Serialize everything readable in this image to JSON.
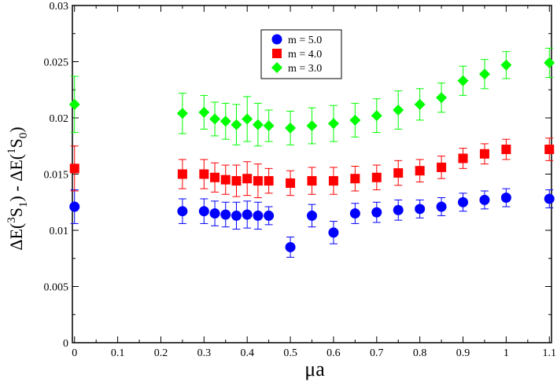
{
  "chart_data": {
    "type": "scatter",
    "title": "",
    "xlabel": "μa",
    "ylabel": {
      "part1": "ΔE(",
      "sup1": "3",
      "part2": "S",
      "sub1": "1",
      "part3": ") - ΔE(",
      "sup2": "1",
      "part4": "S",
      "sub2": "0",
      "part5": ")"
    },
    "xlim": [
      -0.005,
      1.105
    ],
    "ylim": [
      0,
      0.03
    ],
    "xticks": [
      0,
      0.1,
      0.2,
      0.3,
      0.4,
      0.5,
      0.6,
      0.7,
      0.8,
      0.9,
      1,
      1.1
    ],
    "xtick_labels": [
      "0",
      "0.1",
      "0.2",
      "0.3",
      "0.4",
      "0.5",
      "0.6",
      "0.7",
      "0.8",
      "0.9",
      "1",
      "1.1"
    ],
    "yticks": [
      0,
      0.005,
      0.01,
      0.015,
      0.02,
      0.025,
      0.03
    ],
    "ytick_labels": [
      "0",
      "0.005",
      "0.01",
      "0.015",
      "0.02",
      "0.025",
      "0.03"
    ],
    "legend_position": "top-center",
    "series": [
      {
        "name": "m = 5.0",
        "color": "#0000ff",
        "marker": "circle",
        "x": [
          0,
          0.25,
          0.3,
          0.325,
          0.35,
          0.375,
          0.4,
          0.425,
          0.45,
          0.5,
          0.55,
          0.6,
          0.65,
          0.7,
          0.75,
          0.8,
          0.85,
          0.9,
          0.95,
          1.0,
          1.1
        ],
        "y": [
          0.0121,
          0.0117,
          0.0117,
          0.0115,
          0.0114,
          0.0113,
          0.0114,
          0.0113,
          0.0113,
          0.0085,
          0.0113,
          0.0098,
          0.0115,
          0.0116,
          0.0118,
          0.0119,
          0.0121,
          0.0125,
          0.0127,
          0.0129,
          0.0128
        ],
        "err": [
          0.0015,
          0.0011,
          0.0011,
          0.0011,
          0.0011,
          0.0012,
          0.0012,
          0.0012,
          0.0008,
          0.0009,
          0.001,
          0.001,
          0.0009,
          0.0009,
          0.0009,
          0.0008,
          0.0008,
          0.0008,
          0.0008,
          0.0008,
          0.0008
        ]
      },
      {
        "name": "m = 4.0",
        "color": "#ff0000",
        "marker": "square",
        "x": [
          0,
          0.25,
          0.3,
          0.325,
          0.35,
          0.375,
          0.4,
          0.425,
          0.45,
          0.5,
          0.55,
          0.6,
          0.65,
          0.7,
          0.75,
          0.8,
          0.85,
          0.9,
          0.95,
          1.0,
          1.1
        ],
        "y": [
          0.0155,
          0.015,
          0.015,
          0.0147,
          0.0145,
          0.0144,
          0.0146,
          0.0144,
          0.0144,
          0.0142,
          0.0144,
          0.0144,
          0.0146,
          0.0147,
          0.0151,
          0.0153,
          0.0156,
          0.0164,
          0.0168,
          0.0172,
          0.0172
        ],
        "err": [
          0.002,
          0.0013,
          0.0013,
          0.0013,
          0.0013,
          0.0014,
          0.0015,
          0.0015,
          0.0011,
          0.0011,
          0.0012,
          0.0012,
          0.0011,
          0.0011,
          0.0011,
          0.001,
          0.001,
          0.0009,
          0.0009,
          0.0009,
          0.001
        ]
      },
      {
        "name": "m = 3.0",
        "color": "#00ff00",
        "marker": "diamond",
        "x": [
          0,
          0.25,
          0.3,
          0.325,
          0.35,
          0.375,
          0.4,
          0.425,
          0.45,
          0.5,
          0.55,
          0.6,
          0.65,
          0.7,
          0.75,
          0.8,
          0.85,
          0.9,
          0.95,
          1.0,
          1.1
        ],
        "y": [
          0.0212,
          0.0204,
          0.0205,
          0.0199,
          0.0197,
          0.0194,
          0.0199,
          0.0194,
          0.0193,
          0.0191,
          0.0193,
          0.0195,
          0.0198,
          0.0202,
          0.0207,
          0.0212,
          0.0218,
          0.0233,
          0.0239,
          0.0247,
          0.0249
        ]
      }
    ]
  },
  "series_err_green": [
    0.0025,
    0.0018,
    0.0015,
    0.0015,
    0.0016,
    0.0018,
    0.002,
    0.0019,
    0.0014,
    0.0015,
    0.0016,
    0.0016,
    0.0015,
    0.0015,
    0.0017,
    0.0014,
    0.0013,
    0.0013,
    0.0013,
    0.0012,
    0.0013
  ]
}
